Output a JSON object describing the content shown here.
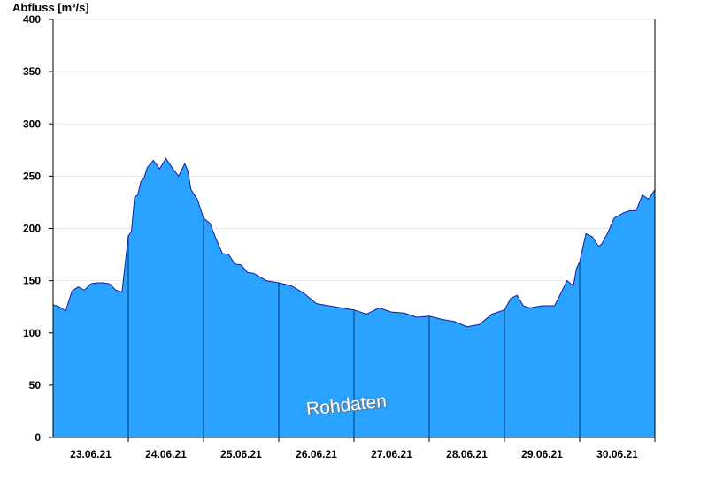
{
  "chart_data": {
    "type": "area",
    "ylabel": "Abfluss [m³/s]",
    "ylim": [
      0,
      400
    ],
    "yticks": [
      0,
      50,
      100,
      150,
      200,
      250,
      300,
      350,
      400
    ],
    "xlim": [
      "2021-06-22T12:00",
      "2021-06-30T12:00"
    ],
    "xtick_labels": [
      "23.06.21",
      "24.06.21",
      "25.06.21",
      "26.06.21",
      "27.06.21",
      "28.06.21",
      "29.06.21",
      "30.06.21"
    ],
    "day_separators": [
      "2021-06-23T12:00",
      "2021-06-24T12:00",
      "2021-06-25T12:00",
      "2021-06-26T12:00",
      "2021-06-27T12:00",
      "2021-06-28T12:00",
      "2021-06-29T12:00",
      "2021-06-30T12:00"
    ],
    "grid": "horizontal",
    "fill_color": "#29a3ff",
    "line_color": "#1a1a9a",
    "separator_color": "#003a6e",
    "watermark": "Rohdaten",
    "x": [
      "2021-06-22T12:00",
      "2021-06-22T14:00",
      "2021-06-22T16:00",
      "2021-06-22T18:00",
      "2021-06-22T20:00",
      "2021-06-22T22:00",
      "2021-06-23T00:00",
      "2021-06-23T02:00",
      "2021-06-23T04:00",
      "2021-06-23T06:00",
      "2021-06-23T08:00",
      "2021-06-23T10:00",
      "2021-06-23T12:00",
      "2021-06-23T13:00",
      "2021-06-23T14:00",
      "2021-06-23T15:00",
      "2021-06-23T16:00",
      "2021-06-23T17:00",
      "2021-06-23T18:00",
      "2021-06-23T20:00",
      "2021-06-23T22:00",
      "2021-06-24T00:00",
      "2021-06-24T02:00",
      "2021-06-24T04:00",
      "2021-06-24T06:00",
      "2021-06-24T07:00",
      "2021-06-24T08:00",
      "2021-06-24T10:00",
      "2021-06-24T12:00",
      "2021-06-24T14:00",
      "2021-06-24T16:00",
      "2021-06-24T18:00",
      "2021-06-24T20:00",
      "2021-06-24T22:00",
      "2021-06-25T00:00",
      "2021-06-25T02:00",
      "2021-06-25T04:00",
      "2021-06-25T08:00",
      "2021-06-25T12:00",
      "2021-06-25T16:00",
      "2021-06-25T20:00",
      "2021-06-26T00:00",
      "2021-06-26T04:00",
      "2021-06-26T08:00",
      "2021-06-26T12:00",
      "2021-06-26T16:00",
      "2021-06-26T20:00",
      "2021-06-27T00:00",
      "2021-06-27T04:00",
      "2021-06-27T08:00",
      "2021-06-27T12:00",
      "2021-06-27T16:00",
      "2021-06-27T20:00",
      "2021-06-28T00:00",
      "2021-06-28T04:00",
      "2021-06-28T08:00",
      "2021-06-28T12:00",
      "2021-06-28T14:00",
      "2021-06-28T16:00",
      "2021-06-28T18:00",
      "2021-06-28T20:00",
      "2021-06-28T22:00",
      "2021-06-29T00:00",
      "2021-06-29T04:00",
      "2021-06-29T08:00",
      "2021-06-29T10:00",
      "2021-06-29T11:00",
      "2021-06-29T12:00",
      "2021-06-29T14:00",
      "2021-06-29T16:00",
      "2021-06-29T18:00",
      "2021-06-29T19:00",
      "2021-06-29T21:00",
      "2021-06-29T23:00",
      "2021-06-30T02:00",
      "2021-06-30T04:00",
      "2021-06-30T06:00",
      "2021-06-30T08:00",
      "2021-06-30T10:00",
      "2021-06-30T12:00"
    ],
    "y": [
      127,
      125,
      121,
      140,
      144,
      141,
      147,
      148,
      148,
      147,
      141,
      139,
      193,
      197,
      230,
      232,
      245,
      248,
      258,
      265,
      257,
      267,
      258,
      250,
      262,
      255,
      237,
      228,
      210,
      205,
      190,
      176,
      175,
      166,
      165,
      158,
      157,
      150,
      148,
      145,
      138,
      128,
      126,
      124,
      122,
      118,
      124,
      120,
      119,
      115,
      116,
      113,
      111,
      106,
      108,
      118,
      122,
      133,
      136,
      126,
      124,
      125,
      126,
      126,
      150,
      145,
      162,
      168,
      195,
      192,
      183,
      185,
      196,
      210,
      215,
      217,
      217,
      232,
      228,
      237
    ]
  }
}
